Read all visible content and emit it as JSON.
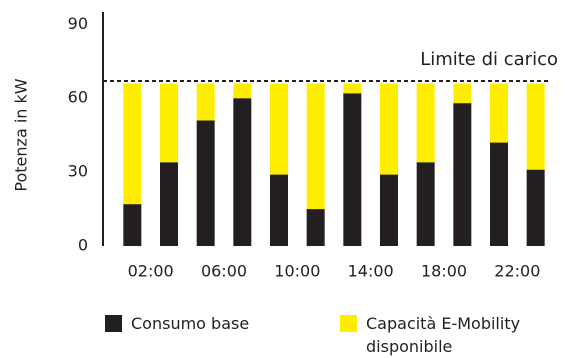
{
  "chart_data": {
    "type": "stacked-bar",
    "y_label": "Potenza in kW",
    "categories": [
      null,
      "02:00",
      null,
      "06:00",
      null,
      "10:00",
      null,
      "14:00",
      null,
      "18:00",
      null,
      "22:00"
    ],
    "series": [
      {
        "name": "Consumo base",
        "color": "#231f20",
        "values": [
          17,
          34,
          51,
          60,
          29,
          15,
          62,
          29,
          34,
          58,
          42,
          31
        ]
      },
      {
        "name": "Capacità E-Mobility disponibile",
        "color": "#ffed00",
        "values": [
          49,
          32,
          15,
          6,
          37,
          51,
          4,
          37,
          32,
          8,
          24,
          35
        ]
      }
    ],
    "limit": {
      "label": "Limite di carico",
      "value": 67
    },
    "ylim": [
      0,
      95
    ],
    "yticks": [
      0,
      30,
      60,
      90
    ]
  }
}
